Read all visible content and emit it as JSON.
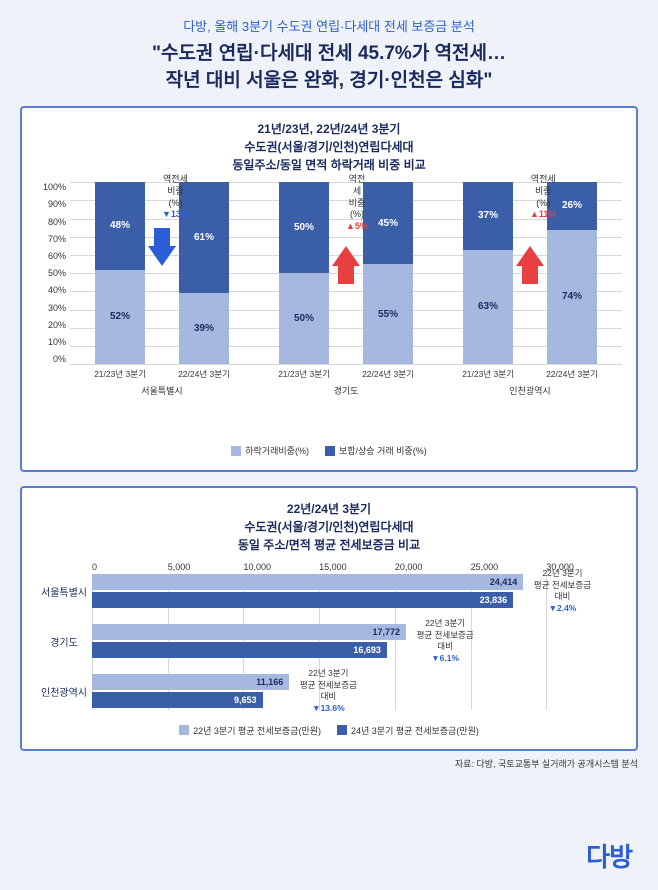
{
  "header": {
    "subtitle": "다방, 올해 3분기 수도권 연립·다세대 전세 보증금 분석",
    "title_line1": "\"수도권 연립·다세대 전세 45.7%가 역전세…",
    "title_line2": "작년 대비 서울은 완화, 경기·인천은 심화\""
  },
  "chart1": {
    "title_line1": "21년/23년, 22년/24년 3분기",
    "title_line2": "수도권(서울/경기/인천)연립다세대",
    "title_line3": "동일주소/동일 면적 하락거래 비중 비교",
    "colors": {
      "light": "#a7b8e0",
      "dark": "#3b5ea8",
      "grid": "#d8d8d8",
      "arrow_down": "#2b5ed6",
      "arrow_up": "#e84040"
    },
    "ylim": [
      0,
      100
    ],
    "ytick_step": 10,
    "regions": [
      {
        "name": "서울특별시",
        "bars": [
          {
            "xlabel": "21/23년 3분기",
            "bottom": 52,
            "top": 48,
            "bottom_label": "52%",
            "top_label": "48%"
          },
          {
            "xlabel": "22/24년 3분기",
            "bottom": 39,
            "top": 61,
            "bottom_label": "39%",
            "top_label": "61%"
          }
        ],
        "annot": {
          "text1": "역전세",
          "text2": "비중(%)",
          "delta": "▼13%",
          "delta_color": "#2b5ed6",
          "arrow": "down"
        }
      },
      {
        "name": "경기도",
        "bars": [
          {
            "xlabel": "21/23년 3분기",
            "bottom": 50,
            "top": 50,
            "bottom_label": "50%",
            "top_label": "50%"
          },
          {
            "xlabel": "22/24년 3분기",
            "bottom": 55,
            "top": 45,
            "bottom_label": "55%",
            "top_label": "45%"
          }
        ],
        "annot": {
          "text1": "역전세",
          "text2": "비중(%)",
          "delta": "▲5%",
          "delta_color": "#e84040",
          "arrow": "up"
        }
      },
      {
        "name": "인천광역시",
        "bars": [
          {
            "xlabel": "21/23년 3분기",
            "bottom": 63,
            "top": 37,
            "bottom_label": "63%",
            "top_label": "37%"
          },
          {
            "xlabel": "22/24년 3분기",
            "bottom": 74,
            "top": 26,
            "bottom_label": "74%",
            "top_label": "26%"
          }
        ],
        "annot": {
          "text1": "역전세",
          "text2": "비중(%)",
          "delta": "▲11%",
          "delta_color": "#e84040",
          "arrow": "up"
        }
      }
    ],
    "legend": [
      {
        "label": "하락거래비중(%)",
        "color": "#a7b8e0"
      },
      {
        "label": "보합/상승 거래 비중(%)",
        "color": "#3b5ea8"
      }
    ]
  },
  "chart2": {
    "title_line1": "22년/24년 3분기",
    "title_line2": "수도권(서울/경기/인천)연립다세대",
    "title_line3": "동일 주소/면적 평균 전세보증금 비교",
    "colors": {
      "light": "#a7b8e0",
      "dark": "#3b5ea8",
      "grid": "#d8d8d8"
    },
    "xmax": 30000,
    "xticks": [
      "0",
      "5,000",
      "10,000",
      "15,000",
      "20,000",
      "25,000",
      "30,000"
    ],
    "rows": [
      {
        "name": "서울특별시",
        "v1": 24414,
        "v1_label": "24,414",
        "v2": 23836,
        "v2_label": "23,836",
        "annot_pct": "▼2.4%"
      },
      {
        "name": "경기도",
        "v1": 17772,
        "v1_label": "17,772",
        "v2": 16693,
        "v2_label": "16,693",
        "annot_pct": "▼6.1%"
      },
      {
        "name": "인천광역시",
        "v1": 11166,
        "v1_label": "11,166",
        "v2": 9653,
        "v2_label": "9,653",
        "annot_pct": "▼13.6%"
      }
    ],
    "annot_line1": "22년 3분기",
    "annot_line2": "평균 전세보증금",
    "annot_line3": "대비",
    "legend": [
      {
        "label": "22년 3분기 평균 전세보증금(만원)",
        "color": "#a7b8e0"
      },
      {
        "label": "24년 3분기 평균 전세보증금(만원)",
        "color": "#3b5ea8"
      }
    ]
  },
  "source": "자료: 다방, 국토교통부 실거래가 공개시스템 분석",
  "brand": "다방"
}
